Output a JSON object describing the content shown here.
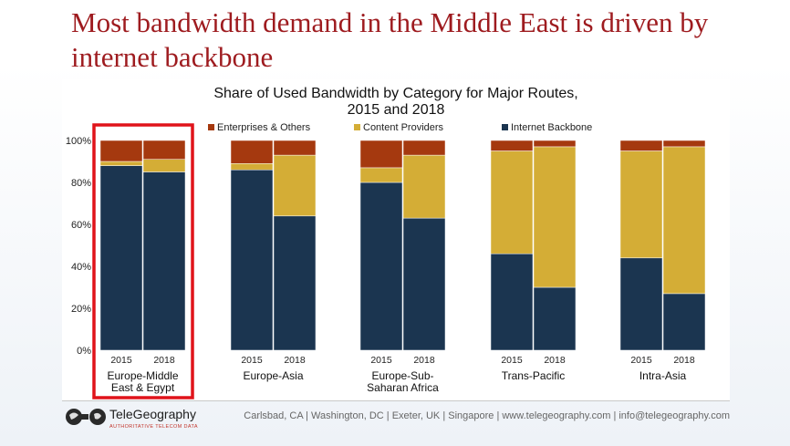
{
  "slide": {
    "title": "Most bandwidth demand in the Middle East is driven by internet backbone"
  },
  "footer": {
    "logo_name": "TeleGeography",
    "logo_tagline": "AUTHORITATIVE TELECOM DATA",
    "contact": "Carlsbad, CA | Washington, DC | Exeter, UK | Singapore | www.telegeography.com | info@telegeography.com"
  },
  "highlight": {
    "group": "Europe-Middle East & Egypt",
    "color": "#e0131a"
  },
  "chart_data": {
    "type": "bar",
    "stacked": true,
    "title": "Share of Used Bandwidth by Category for Major Routes, 2015 and 2018",
    "title_lines": [
      "Share of Used Bandwidth by Category for Major Routes,",
      "2015 and 2018"
    ],
    "ylim": [
      0,
      100
    ],
    "yticks": [
      "0%",
      "20%",
      "40%",
      "60%",
      "80%",
      "100%"
    ],
    "legend_position": "top",
    "groups": [
      {
        "label_lines": [
          "Europe-Middle",
          "East & Egypt"
        ],
        "years": [
          "2015",
          "2018"
        ]
      },
      {
        "label_lines": [
          "Europe-Asia"
        ],
        "years": [
          "2015",
          "2018"
        ]
      },
      {
        "label_lines": [
          "Europe-Sub-",
          "Saharan Africa"
        ],
        "years": [
          "2015",
          "2018"
        ]
      },
      {
        "label_lines": [
          "Trans-Pacific"
        ],
        "years": [
          "2015",
          "2018"
        ]
      },
      {
        "label_lines": [
          "Intra-Asia"
        ],
        "years": [
          "2015",
          "2018"
        ]
      }
    ],
    "series": [
      {
        "name": "Internet Backbone",
        "color": "#1b3550",
        "values": [
          88,
          85,
          86,
          64,
          80,
          63,
          46,
          30,
          44,
          27
        ]
      },
      {
        "name": "Content Providers",
        "color": "#d4ad36",
        "values": [
          2,
          6,
          3,
          29,
          7,
          30,
          49,
          67,
          51,
          70
        ]
      },
      {
        "name": "Enterprises & Others",
        "color": "#a5390f",
        "values": [
          10,
          9,
          11,
          7,
          13,
          7,
          5,
          3,
          5,
          3
        ]
      }
    ],
    "legend_order": [
      "Enterprises & Others",
      "Content Providers",
      "Internet Backbone"
    ]
  }
}
